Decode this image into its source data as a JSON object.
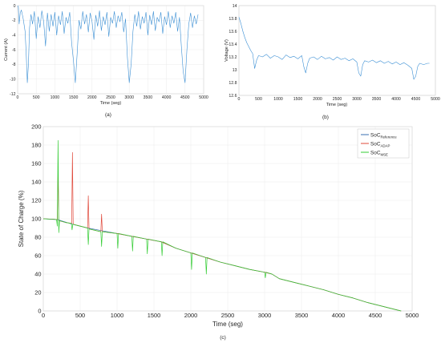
{
  "panel_labels": [
    "(a)",
    "(b)",
    "(c)"
  ],
  "legend_entries": [
    {
      "base": "SoC",
      "sub": "Reference",
      "color": "#3a6fb0"
    },
    {
      "base": "SoC",
      "sub": "ADAP",
      "color": "#e0483a"
    },
    {
      "base": "SoC",
      "sub": "MSE",
      "color": "#33cc33"
    }
  ],
  "chart_data": [
    {
      "id": "a",
      "type": "line",
      "title": "",
      "xlabel": "Time (seg)",
      "ylabel": "Current (A)",
      "xlim": [
        0,
        5000
      ],
      "ylim": [
        -12,
        0
      ],
      "xticks": [
        0,
        500,
        1000,
        1500,
        2000,
        2500,
        3000,
        3500,
        4000,
        4500,
        5000
      ],
      "yticks": [
        0,
        -2,
        -4,
        -6,
        -8,
        -10,
        -12
      ],
      "grid": true,
      "series": [
        {
          "color": "#3b8fd4",
          "x": [
            0,
            20,
            40,
            70,
            100,
            150,
            200,
            230,
            260,
            290,
            320,
            360,
            400,
            450,
            500,
            550,
            600,
            650,
            700,
            750,
            800,
            850,
            900,
            950,
            1000,
            1050,
            1100,
            1150,
            1200,
            1250,
            1300,
            1350,
            1400,
            1450,
            1500,
            1550,
            1600,
            1650,
            1700,
            1750,
            1800,
            1850,
            1900,
            1950,
            2000,
            2050,
            2100,
            2150,
            2200,
            2250,
            2300,
            2350,
            2400,
            2450,
            2500,
            2550,
            2600,
            2650,
            2700,
            2750,
            2800,
            2850,
            2900,
            2950,
            3000,
            3050,
            3100,
            3150,
            3200,
            3250,
            3300,
            3350,
            3400,
            3450,
            3500,
            3550,
            3600,
            3650,
            3700,
            3750,
            3800,
            3850,
            3900,
            3950,
            4000,
            4050,
            4100,
            4150,
            4200,
            4250,
            4300,
            4350,
            4400,
            4450,
            4500,
            4550,
            4600,
            4650,
            4700,
            4750,
            4800,
            4850
          ],
          "y": [
            0,
            -0.2,
            -2.5,
            -1.0,
            -0.6,
            -1.8,
            -3.5,
            -6.5,
            -10.5,
            -8.0,
            -3.0,
            -1.2,
            -2.5,
            -0.8,
            -4.5,
            -1.5,
            -3.0,
            -0.7,
            -2.2,
            -5.5,
            -1.0,
            -3.5,
            -1.2,
            -2.8,
            -0.9,
            -4.0,
            -1.4,
            -2.6,
            -0.8,
            -3.8,
            -1.6,
            -2.4,
            -0.9,
            -5.0,
            -7.5,
            -10.5,
            -6.5,
            -2.0,
            -3.2,
            -0.8,
            -2.5,
            -1.2,
            -3.6,
            -1.0,
            -2.2,
            -4.6,
            -1.3,
            -2.8,
            -0.7,
            -3.4,
            -1.5,
            -2.6,
            -0.9,
            -4.2,
            -1.6,
            -2.4,
            -0.8,
            -3.0,
            -1.4,
            -2.2,
            -0.9,
            -3.6,
            -1.8,
            -7.0,
            -10.5,
            -8.0,
            -3.5,
            -1.2,
            -2.8,
            -0.8,
            -3.2,
            -1.5,
            -2.4,
            -0.9,
            -4.0,
            -1.3,
            -2.6,
            -0.8,
            -3.4,
            -1.6,
            -2.2,
            -0.9,
            -3.8,
            -1.5,
            -2.6,
            -0.8,
            -3.0,
            -1.4,
            -2.4,
            -0.9,
            -3.5,
            -1.6,
            -5.5,
            -9.0,
            -10.5,
            -6.0,
            -2.5,
            -1.0,
            -3.0,
            -1.4,
            -2.5,
            -1.2
          ]
        }
      ]
    },
    {
      "id": "b",
      "type": "line",
      "title": "",
      "xlabel": "Time (seg)",
      "ylabel": "Voltage (V)",
      "xlim": [
        0,
        5000
      ],
      "ylim": [
        12.6,
        14
      ],
      "xticks": [
        0,
        500,
        1000,
        1500,
        2000,
        2500,
        3000,
        3500,
        4000,
        4500,
        5000
      ],
      "yticks": [
        14,
        13.8,
        13.6,
        13.4,
        13.2,
        13,
        12.8,
        12.6
      ],
      "grid": false,
      "series": [
        {
          "color": "#3b8fd4",
          "x": [
            0,
            50,
            100,
            150,
            200,
            250,
            300,
            350,
            400,
            450,
            500,
            600,
            700,
            800,
            900,
            1000,
            1100,
            1200,
            1300,
            1400,
            1500,
            1600,
            1650,
            1700,
            1750,
            1800,
            1900,
            2000,
            2100,
            2200,
            2300,
            2400,
            2500,
            2600,
            2700,
            2800,
            2900,
            3000,
            3050,
            3100,
            3150,
            3200,
            3300,
            3400,
            3500,
            3600,
            3700,
            3800,
            3900,
            4000,
            4100,
            4200,
            4300,
            4400,
            4450,
            4500,
            4550,
            4600,
            4700,
            4800,
            4850
          ],
          "y": [
            13.82,
            13.72,
            13.6,
            13.5,
            13.42,
            13.36,
            13.3,
            13.25,
            13.02,
            13.15,
            13.22,
            13.2,
            13.24,
            13.18,
            13.22,
            13.2,
            13.16,
            13.23,
            13.19,
            13.21,
            13.17,
            13.22,
            13.05,
            12.95,
            13.1,
            13.18,
            13.2,
            13.16,
            13.21,
            13.17,
            13.19,
            13.15,
            13.2,
            13.16,
            13.18,
            13.14,
            13.17,
            13.12,
            12.95,
            12.9,
            13.08,
            13.14,
            13.12,
            13.15,
            13.11,
            13.14,
            13.1,
            13.13,
            13.09,
            13.12,
            13.08,
            13.11,
            13.07,
            13.02,
            12.85,
            12.9,
            13.05,
            13.1,
            13.08,
            13.1,
            13.1
          ]
        }
      ]
    },
    {
      "id": "c",
      "type": "line",
      "title": "",
      "xlabel": "Time (seg)",
      "ylabel": "State of Charge (%)",
      "xlim": [
        0,
        5000
      ],
      "ylim": [
        0,
        200
      ],
      "xticks": [
        0,
        500,
        1000,
        1500,
        2000,
        2500,
        3000,
        3500,
        4000,
        4500,
        5000
      ],
      "yticks": [
        0,
        20,
        40,
        60,
        80,
        100,
        120,
        140,
        160,
        180,
        200
      ],
      "grid": true,
      "legend_position": "top-right",
      "series": [
        {
          "name": "SoC_Reference",
          "color": "#3a6fb0",
          "x": [
            0,
            200,
            400,
            600,
            800,
            1000,
            1200,
            1400,
            1600,
            1800,
            2000,
            2200,
            2400,
            2600,
            2800,
            3000,
            3100,
            3200,
            3400,
            3600,
            3800,
            4000,
            4200,
            4400,
            4600,
            4800,
            4850
          ],
          "y": [
            100,
            99,
            94,
            90,
            87,
            84,
            81,
            78,
            75,
            68,
            63,
            58,
            53,
            49,
            45,
            42,
            40,
            35,
            31,
            27,
            23,
            18,
            14,
            9,
            5,
            1,
            0
          ]
        },
        {
          "name": "SoC_ADAP",
          "color": "#e0483a",
          "x": [
            0,
            150,
            190,
            200,
            210,
            300,
            385,
            395,
            405,
            600,
            610,
            620,
            780,
            790,
            800,
            1000,
            1200,
            1400,
            1600,
            1800,
            2000,
            2200,
            2400,
            2600,
            2800,
            3000,
            3100,
            3200,
            3400,
            3600,
            3800,
            4000,
            4200,
            4400,
            4600,
            4800,
            4850
          ],
          "y": [
            100,
            99.5,
            99,
            150,
            98,
            96,
            95,
            172,
            94,
            90,
            125,
            89,
            86,
            105,
            86,
            84,
            81,
            78,
            75,
            68,
            63,
            58,
            53,
            49,
            45,
            42,
            40,
            35,
            31,
            27,
            23,
            18,
            14,
            9,
            5,
            1,
            0
          ]
        },
        {
          "name": "SoC_MSE",
          "color": "#33cc33",
          "x": [
            0,
            150,
            180,
            190,
            200,
            210,
            220,
            300,
            380,
            390,
            400,
            600,
            610,
            620,
            780,
            790,
            800,
            1000,
            1010,
            1020,
            1200,
            1210,
            1220,
            1400,
            1410,
            1420,
            1600,
            1610,
            1620,
            1800,
            2000,
            2010,
            2020,
            2200,
            2210,
            2220,
            2400,
            2600,
            2800,
            3000,
            3010,
            3020,
            3100,
            3200,
            3400,
            3600,
            3800,
            4000,
            4200,
            4400,
            4600,
            4800,
            4850
          ],
          "y": [
            100,
            99.5,
            99,
            92,
            185,
            85,
            98,
            96,
            95,
            88,
            94,
            90,
            72,
            89,
            86,
            70,
            86,
            84,
            68,
            84,
            81,
            65,
            81,
            78,
            62,
            78,
            75,
            60,
            75,
            68,
            63,
            45,
            63,
            58,
            40,
            58,
            53,
            49,
            45,
            42,
            36,
            42,
            40,
            35,
            31,
            27,
            23,
            18,
            14,
            9,
            5,
            1,
            0
          ]
        }
      ]
    }
  ]
}
